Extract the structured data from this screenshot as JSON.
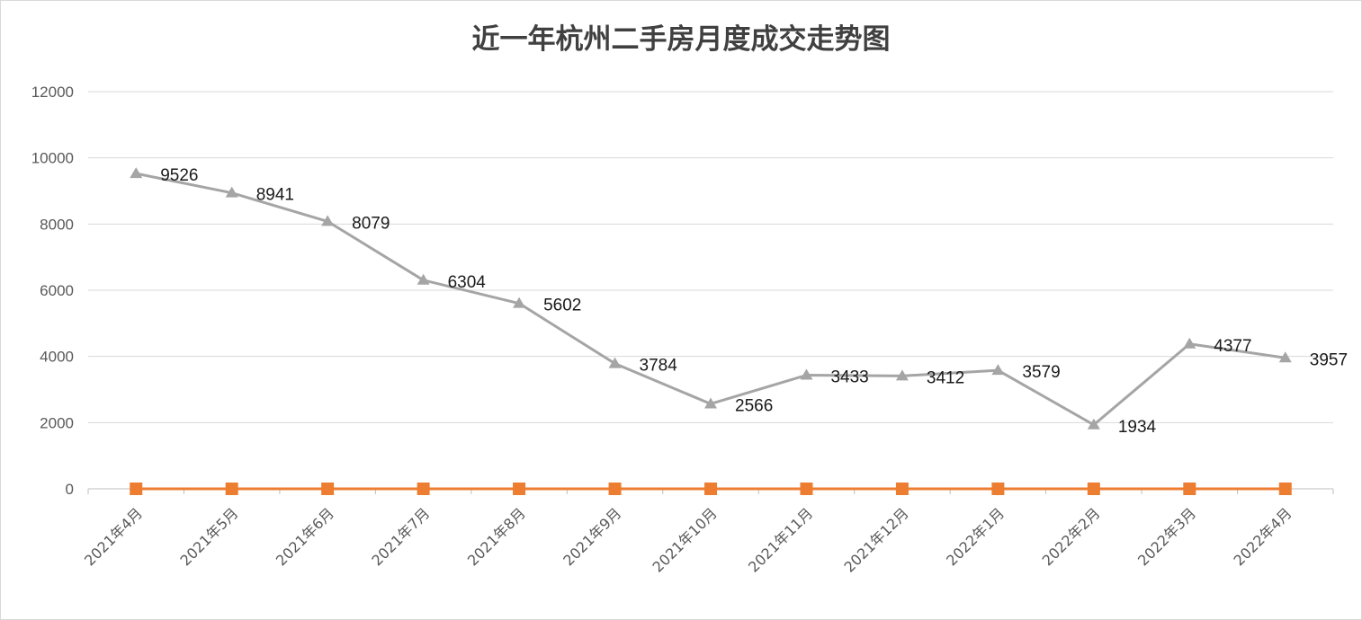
{
  "chart_data": {
    "type": "line",
    "title": "近一年杭州二手房月度成交走势图",
    "categories": [
      "2021年4月",
      "2021年5月",
      "2021年6月",
      "2021年7月",
      "2021年8月",
      "2021年9月",
      "2021年10月",
      "2021年11月",
      "2021年12月",
      "2022年1月",
      "2022年2月",
      "2022年3月",
      "2022年4月"
    ],
    "series": [
      {
        "values": [
          9526,
          8941,
          8079,
          6304,
          5602,
          3784,
          2566,
          3433,
          3412,
          3579,
          1934,
          4377,
          3957
        ],
        "color": "#a5a5a5",
        "marker": "triangle",
        "data_labels": true
      },
      {
        "values": [
          0,
          0,
          0,
          0,
          0,
          0,
          0,
          0,
          0,
          0,
          0,
          0,
          0
        ],
        "color": "#ed7d31",
        "marker": "square",
        "data_labels": false
      }
    ],
    "y_ticks": [
      0,
      2000,
      4000,
      6000,
      8000,
      10000,
      12000
    ],
    "ylim": [
      0,
      12000
    ],
    "grid": true,
    "legend": "none"
  }
}
